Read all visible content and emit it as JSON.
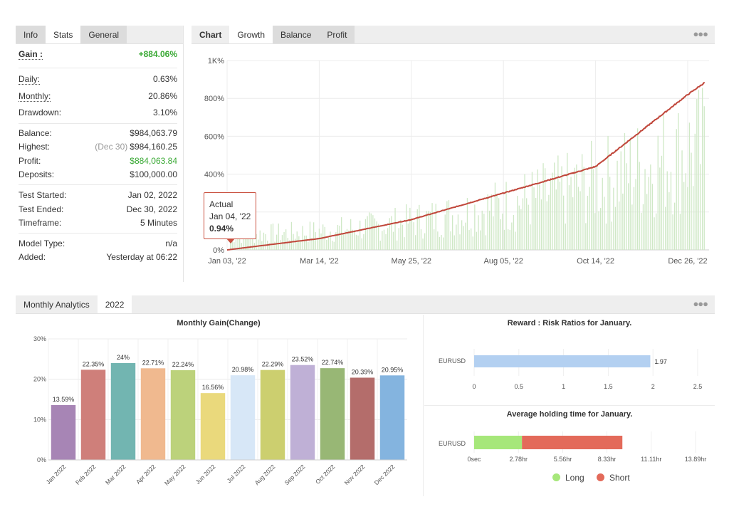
{
  "left_panel": {
    "tabs": [
      "Info",
      "Stats",
      "General"
    ],
    "active_tab": "Stats",
    "rows": {
      "gain": {
        "label": "Gain :",
        "value": "+884.06%"
      },
      "daily": {
        "label": "Daily:",
        "value": "0.63%"
      },
      "monthly": {
        "label": "Monthly:",
        "value": "20.86%"
      },
      "drawdown": {
        "label": "Drawdown:",
        "value": "3.10%"
      },
      "balance": {
        "label": "Balance:",
        "value": "$984,063.79"
      },
      "highest": {
        "label": "Highest:",
        "note": "(Dec 30)",
        "value": "$984,160.25"
      },
      "profit": {
        "label": "Profit:",
        "value": "$884,063.84"
      },
      "deposits": {
        "label": "Deposits:",
        "value": "$100,000.00"
      },
      "test_started": {
        "label": "Test Started:",
        "value": "Jan 02, 2022"
      },
      "test_ended": {
        "label": "Test Ended:",
        "value": "Dec 30, 2022"
      },
      "timeframe": {
        "label": "Timeframe:",
        "value": "5 Minutes"
      },
      "model_type": {
        "label": "Model Type:",
        "value": "n/a"
      },
      "added": {
        "label": "Added:",
        "value": "Yesterday at 06:22"
      }
    },
    "colors": {
      "positive": "#3aa935"
    }
  },
  "chart_panel": {
    "tabs": [
      "Chart",
      "Growth",
      "Balance",
      "Profit"
    ],
    "active_tab": "Growth",
    "more_icon": "ellipsis-icon",
    "tooltip": {
      "title": "Actual",
      "date": "Jan 04, '22",
      "value": "0.94%"
    }
  },
  "analytics_panel": {
    "tabs": [
      "Monthly Analytics",
      "2022"
    ],
    "more_icon": "ellipsis-icon",
    "legend": {
      "long": "Long",
      "short": "Short"
    }
  },
  "chart_data": [
    {
      "type": "line",
      "ylabel": "",
      "xlabel": "",
      "y_ticks": [
        "0%",
        "200%",
        "400%",
        "600%",
        "800%",
        "1K%"
      ],
      "x_ticks": [
        "Jan 03, '22",
        "Mar 14, '22",
        "May 25, '22",
        "Aug 05, '22",
        "Oct 14, '22",
        "Dec 26, '22"
      ],
      "ylim": [
        0,
        1000
      ],
      "series": [
        {
          "name": "Growth",
          "color": "#c0463a",
          "x": [
            "Jan 03, '22",
            "Mar 14, '22",
            "May 25, '22",
            "Aug 05, '22",
            "Oct 14, '22",
            "Dec 26, '22",
            "Dec 30, '22"
          ],
          "values": [
            0,
            60,
            160,
            300,
            440,
            820,
            884
          ]
        },
        {
          "name": "Daily Profit",
          "type": "bar",
          "color": "#cfe8c6",
          "note": "daily green bars behind the growth line"
        }
      ],
      "grid": true
    },
    {
      "type": "bar",
      "title": "Monthly Gain(Change)",
      "categories": [
        "Jan 2022",
        "Feb 2022",
        "Mar 2022",
        "Apr 2022",
        "May 2022",
        "Jun 2022",
        "Jul 2022",
        "Aug 2022",
        "Sep 2022",
        "Oct 2022",
        "Nov 2022",
        "Dec 2022"
      ],
      "values": [
        13.59,
        22.35,
        24,
        22.71,
        22.24,
        16.56,
        20.98,
        22.29,
        23.52,
        22.74,
        20.39,
        20.95
      ],
      "labels": [
        "13.59%",
        "22.35%",
        "24%",
        "22.71%",
        "22.24%",
        "16.56%",
        "20.98%",
        "22.29%",
        "23.52%",
        "22.74%",
        "20.39%",
        "20.95%"
      ],
      "colors": [
        "#a785b5",
        "#cf7f7a",
        "#72b5b1",
        "#f0b98f",
        "#bcd27b",
        "#ead97c",
        "#d7e7f7",
        "#cccf6f",
        "#bfb0d6",
        "#98b775",
        "#b46d6b",
        "#84b4df"
      ],
      "y_ticks": [
        "0%",
        "10%",
        "20%",
        "30%"
      ],
      "ylim": [
        0,
        30
      ],
      "grid": true
    },
    {
      "type": "bar",
      "orientation": "horizontal",
      "title": "Reward : Risk Ratios for January.",
      "categories": [
        "EURUSD"
      ],
      "values": [
        1.97
      ],
      "labels": [
        "1.97"
      ],
      "x_ticks": [
        "0",
        "0.5",
        "1",
        "1.5",
        "2",
        "2.5"
      ],
      "xlim": [
        0,
        2.6
      ],
      "color": "#b3d0f1"
    },
    {
      "type": "bar",
      "orientation": "horizontal",
      "stacked": true,
      "title": "Average holding time for January.",
      "categories": [
        "EURUSD"
      ],
      "series": [
        {
          "name": "Long",
          "values": [
            3.0
          ],
          "color": "#a6e77a"
        },
        {
          "name": "Short",
          "values": [
            6.3
          ],
          "color": "#e36a5a"
        }
      ],
      "x_ticks": [
        "0sec",
        "2.78hr",
        "5.56hr",
        "8.33hr",
        "11.11hr",
        "13.89hr"
      ],
      "xlim": [
        0,
        13.89
      ],
      "unit": "hr"
    }
  ]
}
